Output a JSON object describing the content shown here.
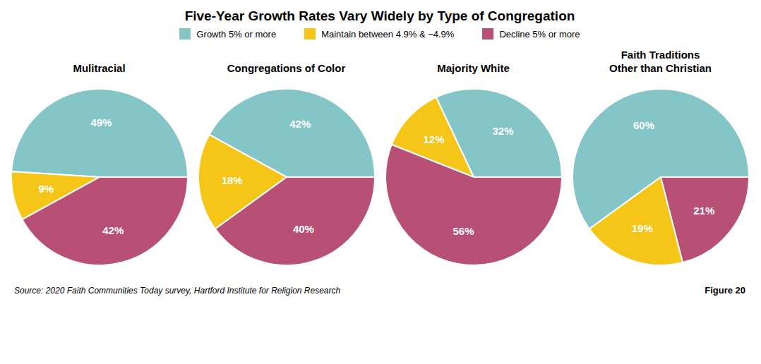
{
  "title": "Five-Year Growth Rates Vary Widely by Type of Congregation",
  "legend": "top",
  "annotations": [
    "Source: 2020 Faith Communities Today survey, Hartford Institute for Religion Research",
    "Figure 20"
  ],
  "chart_data": [
    {
      "type": "pie",
      "title": "Mulitracial",
      "categories": [
        "Growth 5% or more",
        "Maintain between 4.9% & −4.9%",
        "Decline 5% or more"
      ],
      "values": [
        49,
        9,
        42
      ],
      "value_labels": [
        "49%",
        "9%",
        "42%"
      ],
      "colors": [
        "#84c5c8",
        "#f5c518",
        "#b85075"
      ],
      "data_labels": true
    },
    {
      "type": "pie",
      "title": "Congregations of Color",
      "categories": [
        "Growth 5% or more",
        "Maintain between 4.9% & −4.9%",
        "Decline 5% or more"
      ],
      "values": [
        42,
        18,
        40
      ],
      "value_labels": [
        "42%",
        "18%",
        "40%"
      ],
      "colors": [
        "#84c5c8",
        "#f5c518",
        "#b85075"
      ],
      "data_labels": true
    },
    {
      "type": "pie",
      "title": "Majority White",
      "categories": [
        "Growth 5% or more",
        "Maintain between 4.9% & −4.9%",
        "Decline 5% or more"
      ],
      "values": [
        32,
        12,
        56
      ],
      "value_labels": [
        "32%",
        "12%",
        "56%"
      ],
      "colors": [
        "#84c5c8",
        "#f5c518",
        "#b85075"
      ],
      "data_labels": true
    },
    {
      "type": "pie",
      "title": "Faith Traditions\nOther than Christian",
      "categories": [
        "Growth 5% or more",
        "Maintain between 4.9% & −4.9%",
        "Decline 5% or more"
      ],
      "values": [
        60,
        19,
        21
      ],
      "value_labels": [
        "60%",
        "19%",
        "21%"
      ],
      "colors": [
        "#84c5c8",
        "#f5c518",
        "#b85075"
      ],
      "data_labels": true
    }
  ]
}
